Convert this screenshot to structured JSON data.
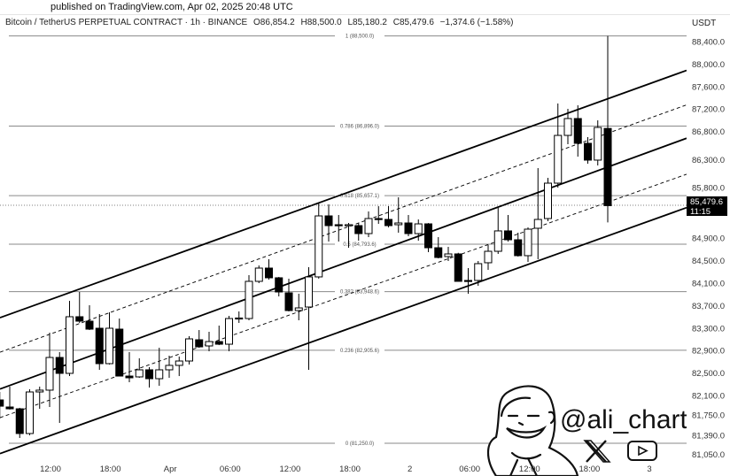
{
  "header": {
    "published": "published on TradingView.com, Apr 02, 2025 20:48 UTC",
    "symbol": "Bitcoin / TetherUS PERPETUAL CONTRACT · 1h · BINANCE",
    "open": "O86,854.2",
    "high": "H88,500.0",
    "low": "L85,180.2",
    "close": "C85,479.6",
    "change": "−1,374.6 (−1.58%)",
    "unit": "USDT"
  },
  "watermark": {
    "handle": "@ali_charts",
    "icons": [
      "x-logo-icon",
      "youtube-play-icon"
    ]
  },
  "colors": {
    "up": "#ffffff",
    "down": "#000000",
    "outline": "#000000",
    "fib": "#777777",
    "price_label_bg": "#000000"
  },
  "chart_data": {
    "type": "candlestick",
    "interval": "1h",
    "y_axis": {
      "ticks": [
        "88,400.0",
        "88,000.0",
        "87,600.0",
        "87,200.0",
        "86,800.0",
        "86,300.0",
        "85,800.0",
        "84,900.0",
        "84,500.0",
        "84,100.0",
        "83,700.0",
        "83,300.0",
        "82,900.0",
        "82,500.0",
        "82,100.0",
        "81,750.0",
        "81,390.0",
        "81,050.0"
      ],
      "tick_values": [
        88400,
        88000,
        87600,
        87200,
        86800,
        86300,
        85800,
        84900,
        84500,
        84100,
        83700,
        83300,
        82900,
        82500,
        82100,
        81750,
        81390,
        81050
      ]
    },
    "x_axis": {
      "ticks": [
        "12:00",
        "18:00",
        "Apr",
        "06:00",
        "12:00",
        "18:00",
        "2",
        "06:00",
        "12:00",
        "18:00",
        "3"
      ]
    },
    "current_price": {
      "value": "85,479.6",
      "countdown": "11:15",
      "price": 85479.6
    },
    "fib_levels": [
      {
        "label": "1 (88,500.0)",
        "price": 88500
      },
      {
        "label": "0.786 (86,896.0)",
        "price": 86896
      },
      {
        "label": "0.618 (85,657.1)",
        "price": 85657.1
      },
      {
        "label": "0.5 (84,793.6)",
        "price": 84793.6
      },
      {
        "label": "0.382 (83,948.6)",
        "price": 83948.6
      },
      {
        "label": "0.236 (82,905.6)",
        "price": 82905.6
      },
      {
        "label": "0 (81,250.0)",
        "price": 81250
      }
    ],
    "candles_ohlc": [
      [
        82021,
        82163,
        81690,
        81910
      ],
      [
        81895,
        82258,
        81850,
        81863
      ],
      [
        81863,
        81880,
        81344,
        81423
      ],
      [
        81423,
        82210,
        81392,
        82163
      ],
      [
        82163,
        82258,
        81863,
        82195
      ],
      [
        82195,
        83218,
        81895,
        82777
      ],
      [
        82777,
        82872,
        81612,
        82494
      ],
      [
        82494,
        83785,
        82446,
        83502
      ],
      [
        83502,
        83943,
        83392,
        83423
      ],
      [
        83423,
        83707,
        83265,
        83281
      ],
      [
        83297,
        83549,
        82557,
        82667
      ],
      [
        82667,
        83581,
        82651,
        83297
      ],
      [
        83281,
        83470,
        82446,
        82446
      ],
      [
        82446,
        82872,
        82336,
        82415
      ],
      [
        82431,
        82762,
        82415,
        82557
      ],
      [
        82557,
        82604,
        82242,
        82399
      ],
      [
        82399,
        82950,
        82273,
        82557
      ],
      [
        82557,
        82809,
        82415,
        82636
      ],
      [
        82636,
        82793,
        82446,
        82714
      ],
      [
        82714,
        83155,
        82651,
        83108
      ],
      [
        83092,
        83265,
        82950,
        82966
      ],
      [
        82982,
        83234,
        82887,
        83060
      ],
      [
        83060,
        83344,
        82997,
        83013
      ],
      [
        83013,
        83518,
        82887,
        83470
      ],
      [
        83470,
        83596,
        83392,
        83480
      ],
      [
        83470,
        84242,
        83439,
        84132
      ],
      [
        84132,
        84415,
        84100,
        84368
      ],
      [
        84368,
        84526,
        84163,
        84195
      ],
      [
        84195,
        84210,
        83864,
        83943
      ],
      [
        83927,
        84179,
        83596,
        83612
      ],
      [
        83612,
        83911,
        83439,
        83659
      ],
      [
        83675,
        84384,
        82557,
        84211
      ],
      [
        84211,
        85518,
        84180,
        85297
      ],
      [
        85297,
        85502,
        84840,
        85124
      ],
      [
        85140,
        85313,
        84840,
        85130
      ],
      [
        85130,
        85171,
        84730,
        85140
      ],
      [
        85124,
        85171,
        84856,
        84982
      ],
      [
        84982,
        85376,
        84919,
        85250
      ],
      [
        85250,
        85470,
        85155,
        85240
      ],
      [
        85234,
        85470,
        85092,
        85124
      ],
      [
        85140,
        85628,
        84998,
        85171
      ],
      [
        85171,
        85313,
        84935,
        84982
      ],
      [
        84982,
        85234,
        84856,
        85155
      ],
      [
        85155,
        85170,
        84652,
        84730
      ],
      [
        84730,
        84919,
        84541,
        84557
      ],
      [
        84573,
        84746,
        84494,
        84620
      ],
      [
        84620,
        84640,
        84132,
        84132
      ],
      [
        84148,
        84368,
        83911,
        84132
      ],
      [
        84148,
        84494,
        84053,
        84447
      ],
      [
        84463,
        84778,
        84337,
        84667
      ],
      [
        84667,
        85439,
        84620,
        85030
      ],
      [
        85030,
        85313,
        84840,
        84872
      ],
      [
        84872,
        84998,
        84573,
        84589
      ],
      [
        84589,
        85092,
        84478,
        85061
      ],
      [
        85077,
        86148,
        84526,
        85234
      ],
      [
        85250,
        85975,
        85203,
        85880
      ],
      [
        85880,
        87298,
        85801,
        86730
      ],
      [
        86730,
        87203,
        86573,
        87030
      ],
      [
        87030,
        87266,
        86352,
        86589
      ],
      [
        86589,
        86699,
        86227,
        86290
      ],
      [
        86290,
        86998,
        86195,
        86872
      ],
      [
        86854.2,
        88500,
        85180.2,
        85479.6
      ]
    ]
  }
}
